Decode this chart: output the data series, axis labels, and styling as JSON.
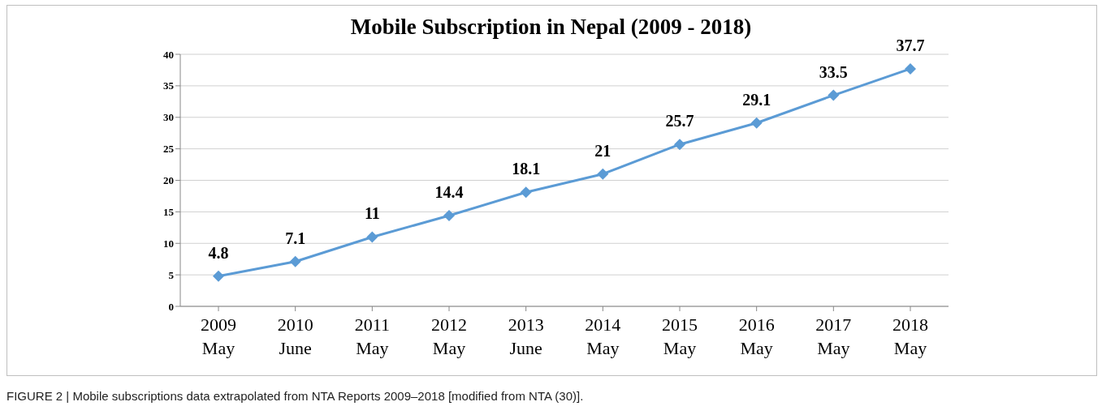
{
  "chart_data": {
    "type": "line",
    "title": "Mobile Subscription in Nepal (2009 - 2018)",
    "categories": [
      "2009\nMay",
      "2010\nJune",
      "2011\nMay",
      "2012\nMay",
      "2013\nJune",
      "2014\nMay",
      "2015\nMay",
      "2016\nMay",
      "2017\nMay",
      "2018\nMay"
    ],
    "series": [
      {
        "color": "#5b9bd5",
        "values": [
          4.8,
          7.1,
          11,
          14.4,
          18.1,
          21,
          25.7,
          29.1,
          33.5,
          37.7
        ]
      }
    ],
    "ylim": [
      0,
      40
    ],
    "yticks": [
      0,
      5,
      10,
      15,
      20,
      25,
      30,
      35,
      40
    ],
    "grid": "y",
    "marker": "diamond",
    "data_labels": true,
    "legend": false,
    "annotations": [
      "FIGURE 2 | Mobile subscriptions data extrapolated from NTA Reports 2009–2018 [modified from NTA (30)]."
    ]
  }
}
